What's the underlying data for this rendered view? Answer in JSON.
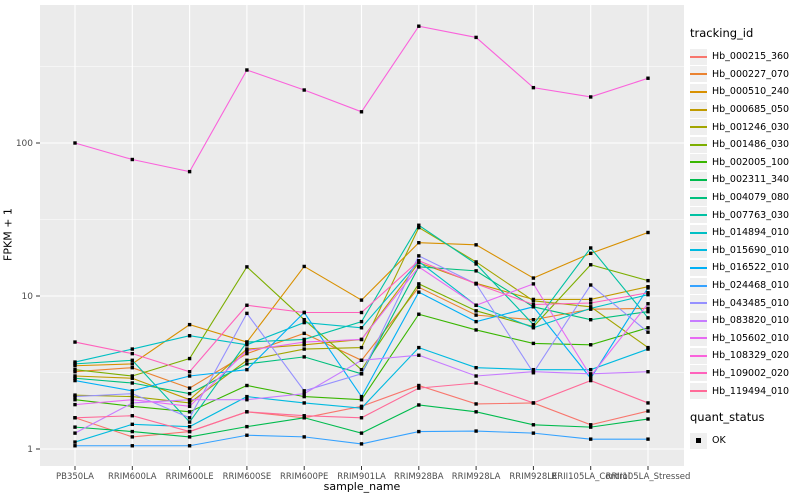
{
  "figure": {
    "y_axis": {
      "title": "FPKM + 1",
      "tick_labels": [
        "1",
        "10",
        "100"
      ]
    },
    "x_axis": {
      "title": "sample_name"
    },
    "legend": {
      "tracking_title": "tracking_id",
      "quant_title": "quant_status",
      "quant_items": [
        {
          "label": "OK",
          "marker": "filled-black-square"
        }
      ]
    },
    "colors": {
      "panel_bg": "#EBEBEB",
      "grid": "#FFFFFF",
      "axis_text": "#4D4D4D",
      "tick_mark": "#333333",
      "point": "#000000",
      "legend_key_bg": "#EFEFEF"
    }
  },
  "chart_data": {
    "type": "line",
    "title": "",
    "xlabel": "sample_name",
    "ylabel": "FPKM + 1",
    "y_scale": "log10",
    "ylim": [
      0.77,
      800
    ],
    "y_ticks": [
      1,
      10,
      100
    ],
    "y_minor_ticks": [
      3.162,
      31.62,
      316.2
    ],
    "grid": true,
    "legend_position": "right",
    "point_shape": "filled-square",
    "point_color": "#000000",
    "categories": [
      "PB350LA",
      "RRIM600LA",
      "RRIM600LE",
      "RRIM600SE",
      "RRIM600PE",
      "RRIM901LA",
      "RRIM928BA",
      "RRIM928LA",
      "RRIM928LE",
      "RRII105LA_Control",
      "RRII105LA_Stressed"
    ],
    "series": [
      {
        "name": "Hb_000215_360",
        "color": "#F8766D",
        "values": [
          1.6,
          1.2,
          1.3,
          1.75,
          1.6,
          1.9,
          2.6,
          1.97,
          2.0,
          1.44,
          1.77
        ]
      },
      {
        "name": "Hb_000227_070",
        "color": "#EA8331",
        "values": [
          3.2,
          3.4,
          2.5,
          4.2,
          5.7,
          3.8,
          11.4,
          7.5,
          7.0,
          8.2,
          8.3
        ]
      },
      {
        "name": "Hb_000510_240",
        "color": "#D89000",
        "values": [
          3.5,
          3.6,
          6.5,
          5.0,
          15.6,
          9.4,
          22.3,
          21.6,
          13.1,
          19.0,
          26.0
        ]
      },
      {
        "name": "Hb_000685_050",
        "color": "#C09B00",
        "values": [
          3.0,
          2.9,
          2.1,
          4.5,
          4.8,
          5.2,
          16.5,
          12.1,
          9.5,
          9.5,
          11.5
        ]
      },
      {
        "name": "Hb_001246_030",
        "color": "#A3A500",
        "values": [
          2.25,
          2.2,
          2.0,
          3.8,
          4.5,
          4.6,
          28.0,
          16.7,
          9.3,
          8.5,
          4.6
        ]
      },
      {
        "name": "Hb_001486_030",
        "color": "#7CAE00",
        "values": [
          3.3,
          3.0,
          3.9,
          15.5,
          7.0,
          3.3,
          12.0,
          8.0,
          6.3,
          16.0,
          12.6
        ]
      },
      {
        "name": "Hb_002005_100",
        "color": "#39B600",
        "values": [
          2.1,
          1.9,
          1.75,
          2.6,
          2.2,
          2.1,
          7.6,
          6.0,
          4.9,
          4.8,
          6.2
        ]
      },
      {
        "name": "Hb_002311_340",
        "color": "#00BB4E",
        "values": [
          1.39,
          1.3,
          1.2,
          1.4,
          1.6,
          1.27,
          1.94,
          1.75,
          1.44,
          1.39,
          1.57
        ]
      },
      {
        "name": "Hb_004079_080",
        "color": "#00BF7D",
        "values": [
          2.9,
          2.7,
          2.3,
          3.6,
          4.0,
          3.1,
          15.5,
          14.6,
          8.5,
          7.0,
          7.9
        ]
      },
      {
        "name": "Hb_007763_030",
        "color": "#00C1A3",
        "values": [
          3.6,
          3.8,
          1.5,
          5.0,
          5.2,
          6.8,
          29.0,
          16.2,
          6.5,
          20.6,
          7.2
        ]
      },
      {
        "name": "Hb_014894_010",
        "color": "#00BFC4",
        "values": [
          3.7,
          4.5,
          5.5,
          4.8,
          6.7,
          6.2,
          16.8,
          8.7,
          6.2,
          8.3,
          10.2
        ]
      },
      {
        "name": "Hb_015690_010",
        "color": "#00BAE0",
        "values": [
          1.11,
          1.45,
          1.4,
          2.2,
          2.0,
          1.85,
          4.6,
          3.4,
          3.3,
          3.3,
          4.5
        ]
      },
      {
        "name": "Hb_016522_010",
        "color": "#00B0F6",
        "values": [
          2.8,
          2.4,
          3.0,
          3.3,
          7.8,
          2.2,
          10.6,
          6.8,
          8.5,
          2.9,
          11.3
        ]
      },
      {
        "name": "Hb_024468_010",
        "color": "#35A2FF",
        "values": [
          1.05,
          1.05,
          1.05,
          1.23,
          1.2,
          1.08,
          1.3,
          1.31,
          1.27,
          1.16,
          1.16
        ]
      },
      {
        "name": "Hb_043485_010",
        "color": "#9590FF",
        "values": [
          2.2,
          2.3,
          1.6,
          7.7,
          2.4,
          3.1,
          18.3,
          12.0,
          3.15,
          11.8,
          5.8
        ]
      },
      {
        "name": "Hb_083820_010",
        "color": "#C77CFF",
        "values": [
          1.27,
          2.0,
          2.1,
          2.1,
          2.3,
          3.8,
          4.1,
          3.0,
          3.2,
          3.1,
          3.2
        ]
      },
      {
        "name": "Hb_105602_010",
        "color": "#E76BF3",
        "values": [
          1.95,
          2.1,
          1.9,
          4.4,
          5.0,
          5.2,
          15.5,
          8.7,
          12.0,
          3.0,
          8.9
        ]
      },
      {
        "name": "Hb_108329_020",
        "color": "#FA62DB",
        "values": [
          100,
          78,
          65,
          300,
          222,
          160,
          580,
          490,
          230,
          200,
          265
        ]
      },
      {
        "name": "Hb_109002_020",
        "color": "#FF62BC",
        "values": [
          5.0,
          4.2,
          3.2,
          8.7,
          7.8,
          7.8,
          17.0,
          12.0,
          8.8,
          9.0,
          10.5
        ]
      },
      {
        "name": "Hb_119494_010",
        "color": "#FF6A98",
        "values": [
          1.6,
          1.65,
          1.3,
          1.75,
          1.65,
          1.6,
          2.5,
          2.7,
          2.0,
          2.8,
          2.0
        ]
      }
    ]
  }
}
